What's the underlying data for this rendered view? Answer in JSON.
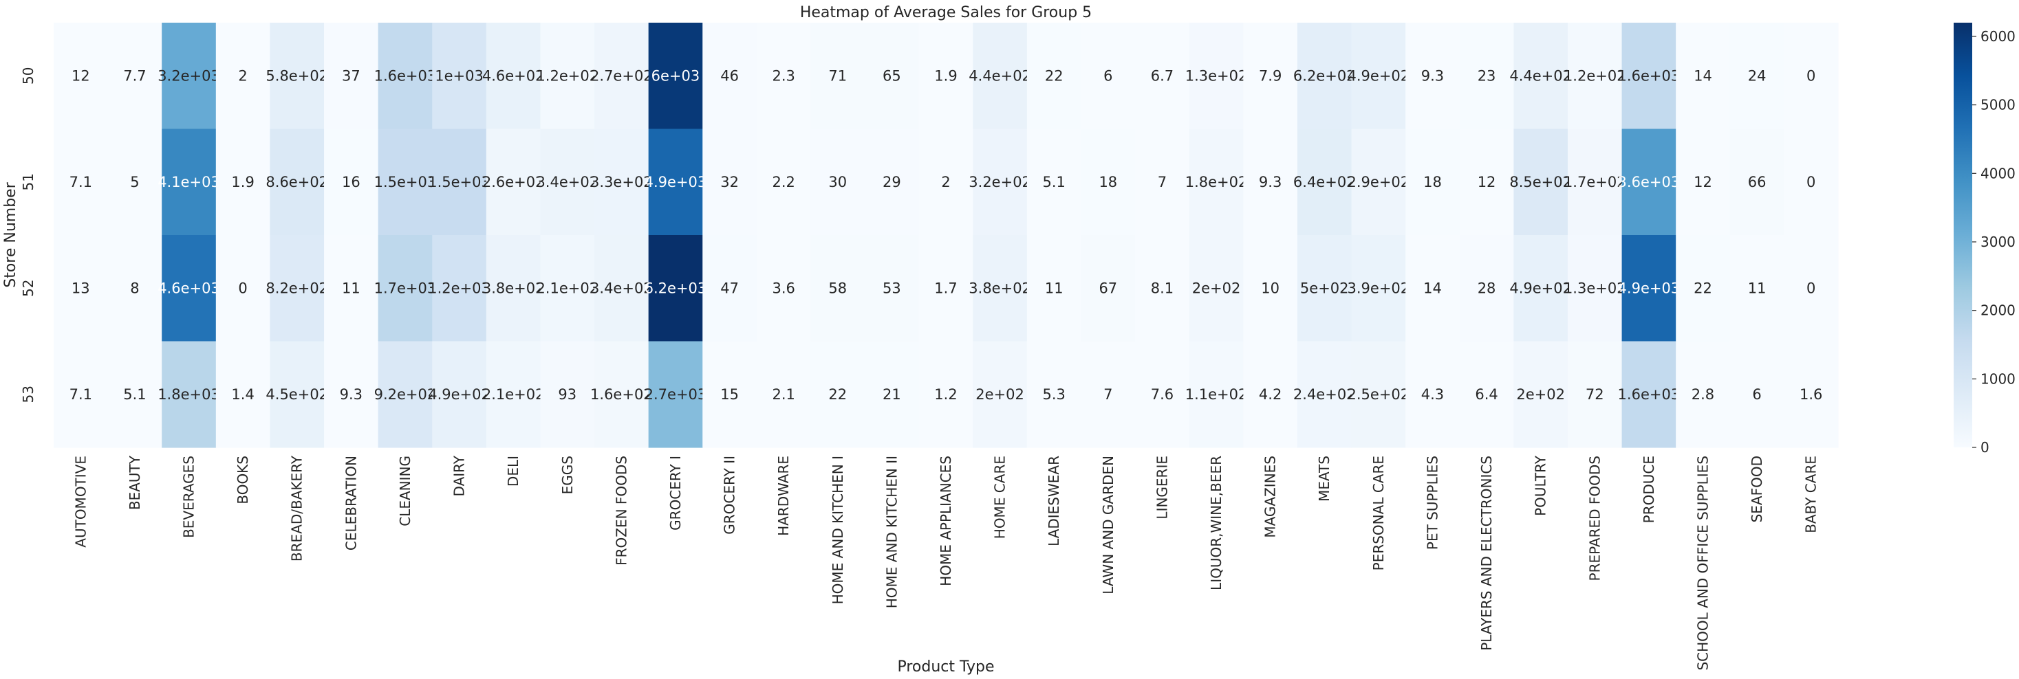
{
  "chart_data": {
    "type": "heatmap",
    "title": "Heatmap of Average Sales for Group 5",
    "xlabel": "Product Type",
    "ylabel": "Store Number",
    "colormap": "Blues",
    "vmin": 0,
    "vmax": 6200,
    "colorbar_ticks": [
      0,
      1000,
      2000,
      3000,
      4000,
      5000,
      6000
    ],
    "x_categories": [
      "AUTOMOTIVE",
      "BEAUTY",
      "BEVERAGES",
      "BOOKS",
      "BREAD/BAKERY",
      "CELEBRATION",
      "CLEANING",
      "DAIRY",
      "DELI",
      "EGGS",
      "FROZEN FOODS",
      "GROCERY I",
      "GROCERY II",
      "HARDWARE",
      "HOME AND KITCHEN I",
      "HOME AND KITCHEN II",
      "HOME APPLIANCES",
      "HOME CARE",
      "LADIESWEAR",
      "LAWN AND GARDEN",
      "LINGERIE",
      "LIQUOR,WINE,BEER",
      "MAGAZINES",
      "MEATS",
      "PERSONAL CARE",
      "PET SUPPLIES",
      "PLAYERS AND ELECTRONICS",
      "POULTRY",
      "PREPARED FOODS",
      "PRODUCE",
      "SCHOOL AND OFFICE SUPPLIES",
      "SEAFOOD",
      "BABY CARE"
    ],
    "y_categories": [
      "50",
      "51",
      "52",
      "53"
    ],
    "values": [
      [
        12,
        7.7,
        3200,
        2,
        580,
        37,
        1600,
        1000,
        460,
        120,
        270,
        6000,
        46,
        2.3,
        71,
        65,
        1.9,
        440,
        22,
        6,
        6.7,
        130,
        7.9,
        620,
        490,
        9.3,
        23,
        440,
        120,
        1600,
        14,
        24,
        0
      ],
      [
        7.1,
        5,
        4100,
        1.9,
        860,
        16,
        1500,
        1500,
        260,
        340,
        330,
        4900,
        32,
        2.2,
        30,
        29,
        2,
        320,
        5.1,
        18,
        7,
        180,
        9.3,
        640,
        290,
        18,
        12,
        850,
        170,
        3600,
        12,
        66,
        0
      ],
      [
        13,
        8,
        4600,
        0,
        820,
        11,
        1700,
        1200,
        380,
        210,
        340,
        6200,
        47,
        3.6,
        58,
        53,
        1.7,
        380,
        11,
        67,
        8.1,
        200,
        10,
        500,
        390,
        14,
        28,
        490,
        130,
        4900,
        22,
        11,
        0
      ],
      [
        7.1,
        5.1,
        1800,
        1.4,
        450,
        9.3,
        920,
        490,
        210,
        93,
        160,
        2700,
        15,
        2.1,
        22,
        21,
        1.2,
        200,
        5.3,
        7,
        7.6,
        110,
        4.2,
        240,
        250,
        4.3,
        6.4,
        200,
        72,
        1600,
        2.8,
        6,
        1.6
      ]
    ],
    "annotations": [
      [
        "12",
        "7.7",
        "3.2e+03",
        "2",
        "5.8e+02",
        "37",
        "1.6e+03",
        "1e+03",
        "4.6e+02",
        "1.2e+02",
        "2.7e+02",
        "6e+03",
        "46",
        "2.3",
        "71",
        "65",
        "1.9",
        "4.4e+02",
        "22",
        "6",
        "6.7",
        "1.3e+02",
        "7.9",
        "6.2e+02",
        "4.9e+02",
        "9.3",
        "23",
        "4.4e+02",
        "1.2e+02",
        "1.6e+03",
        "14",
        "24",
        "0"
      ],
      [
        "7.1",
        "5",
        "4.1e+03",
        "1.9",
        "8.6e+02",
        "16",
        "1.5e+03",
        "1.5e+03",
        "2.6e+02",
        "3.4e+02",
        "3.3e+02",
        "4.9e+03",
        "32",
        "2.2",
        "30",
        "29",
        "2",
        "3.2e+02",
        "5.1",
        "18",
        "7",
        "1.8e+02",
        "9.3",
        "6.4e+02",
        "2.9e+02",
        "18",
        "12",
        "8.5e+02",
        "1.7e+02",
        "3.6e+03",
        "12",
        "66",
        "0"
      ],
      [
        "13",
        "8",
        "4.6e+03",
        "0",
        "8.2e+02",
        "11",
        "1.7e+03",
        "1.2e+03",
        "3.8e+02",
        "2.1e+02",
        "3.4e+02",
        "6.2e+03",
        "47",
        "3.6",
        "58",
        "53",
        "1.7",
        "3.8e+02",
        "11",
        "67",
        "8.1",
        "2e+02",
        "10",
        "5e+02",
        "3.9e+02",
        "14",
        "28",
        "4.9e+02",
        "1.3e+02",
        "4.9e+03",
        "22",
        "11",
        "0"
      ],
      [
        "7.1",
        "5.1",
        "1.8e+03",
        "1.4",
        "4.5e+02",
        "9.3",
        "9.2e+02",
        "4.9e+02",
        "2.1e+02",
        "93",
        "1.6e+02",
        "2.7e+03",
        "15",
        "2.1",
        "22",
        "21",
        "1.2",
        "2e+02",
        "5.3",
        "7",
        "7.6",
        "1.1e+02",
        "4.2",
        "2.4e+02",
        "2.5e+02",
        "4.3",
        "6.4",
        "2e+02",
        "72",
        "1.6e+03",
        "2.8",
        "6",
        "1.6"
      ]
    ]
  }
}
